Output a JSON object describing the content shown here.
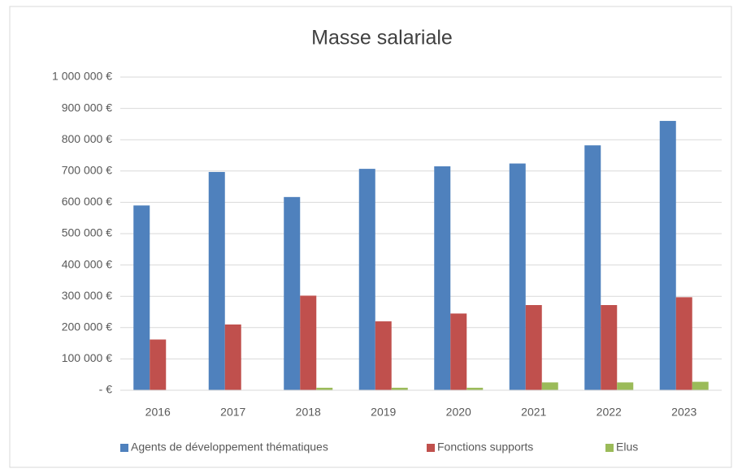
{
  "chart_data": {
    "type": "bar",
    "title": "Masse salariale",
    "categories": [
      "2016",
      "2017",
      "2018",
      "2019",
      "2020",
      "2021",
      "2022",
      "2023"
    ],
    "series": [
      {
        "name": "Agents de développement thématiques",
        "color": "#4f81bd",
        "values": [
          590000,
          697000,
          617000,
          707000,
          715000,
          724000,
          782000,
          860000
        ]
      },
      {
        "name": "Fonctions supports",
        "color": "#c0504d",
        "values": [
          162000,
          210000,
          302000,
          220000,
          245000,
          272000,
          272000,
          297000
        ]
      },
      {
        "name": "Elus",
        "color": "#9bbb59",
        "values": [
          0,
          0,
          8000,
          8000,
          8000,
          25000,
          25000,
          27000
        ]
      }
    ],
    "ylim": [
      0,
      1000000
    ],
    "yticks": [
      {
        "value": 0,
        "label": "-   €"
      },
      {
        "value": 100000,
        "label": "100 000 €"
      },
      {
        "value": 200000,
        "label": "200 000 €"
      },
      {
        "value": 300000,
        "label": "300 000 €"
      },
      {
        "value": 400000,
        "label": "400 000 €"
      },
      {
        "value": 500000,
        "label": "500 000 €"
      },
      {
        "value": 600000,
        "label": "600 000 €"
      },
      {
        "value": 700000,
        "label": "700 000 €"
      },
      {
        "value": 800000,
        "label": "800 000 €"
      },
      {
        "value": 900000,
        "label": "900 000 €"
      },
      {
        "value": 1000000,
        "label": "1 000 000 €"
      }
    ],
    "grid": true,
    "legend": "bottom"
  }
}
